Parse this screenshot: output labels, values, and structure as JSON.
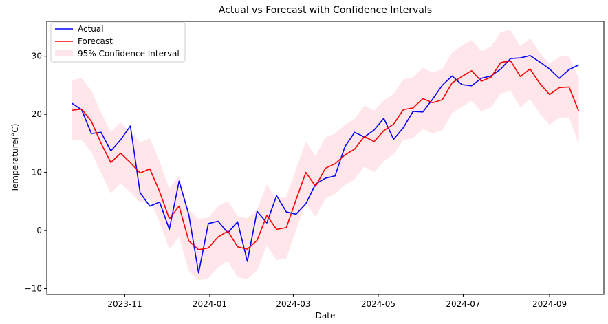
{
  "chart_data": {
    "type": "line",
    "title": "Actual vs Forecast with Confidence Intervals",
    "xlabel": "Date",
    "ylabel": "Temperature(°C)",
    "x_start": "2023-09-24",
    "x_step_days": 7,
    "xlim": [
      "2023-09-06",
      "2024-10-10"
    ],
    "ylim": [
      -11,
      36
    ],
    "x_ticks": [
      {
        "date": "2023-11-01",
        "label": "2023-11"
      },
      {
        "date": "2024-01-01",
        "label": "2024-01"
      },
      {
        "date": "2024-03-01",
        "label": "2024-03"
      },
      {
        "date": "2024-05-01",
        "label": "2024-05"
      },
      {
        "date": "2024-07-01",
        "label": "2024-07"
      },
      {
        "date": "2024-09-01",
        "label": "2024-09"
      }
    ],
    "y_ticks": [
      -10,
      0,
      10,
      20,
      30
    ],
    "legend_position": "top-left",
    "series": [
      {
        "name": "Actual",
        "color": "#0000ff",
        "values": [
          21.9,
          20.8,
          16.7,
          16.9,
          13.7,
          15.6,
          18.0,
          6.5,
          4.2,
          4.9,
          0.2,
          8.5,
          2.7,
          -7.3,
          1.2,
          1.6,
          -0.4,
          1.5,
          -5.3,
          3.3,
          1.3,
          6.0,
          3.2,
          2.8,
          4.6,
          8.0,
          9.0,
          9.4,
          14.4,
          16.9,
          16.1,
          17.3,
          19.3,
          15.7,
          17.7,
          20.5,
          20.4,
          22.6,
          25.0,
          26.6,
          25.1,
          24.9,
          26.2,
          26.6,
          27.8,
          29.6,
          29.7,
          30.1,
          29.0,
          27.8,
          26.2,
          27.7,
          28.5
        ]
      },
      {
        "name": "Forecast",
        "color": "#ff0000",
        "values": [
          20.7,
          20.9,
          18.8,
          15.0,
          11.7,
          13.3,
          11.7,
          9.9,
          10.6,
          6.7,
          2.0,
          4.2,
          -1.8,
          -3.3,
          -3.0,
          -1.1,
          -0.1,
          -2.8,
          -3.2,
          -1.7,
          2.6,
          0.2,
          0.5,
          5.3,
          10.0,
          7.6,
          10.7,
          11.5,
          13.0,
          14.0,
          16.2,
          15.3,
          17.2,
          18.3,
          20.8,
          21.1,
          22.7,
          22.0,
          22.5,
          25.4,
          26.5,
          27.5,
          25.7,
          26.4,
          28.9,
          29.2,
          26.5,
          27.8,
          25.3,
          23.4,
          24.6,
          24.7,
          20.5
        ]
      }
    ],
    "confidence_interval": {
      "name": "95% Confidence Interval",
      "color": "#ffc0cb",
      "lower": [
        15.5,
        15.6,
        13.5,
        9.9,
        6.4,
        8.1,
        6.6,
        4.8,
        5.4,
        1.4,
        -3.2,
        -1.1,
        -7.0,
        -8.6,
        -8.2,
        -6.3,
        -5.3,
        -8.0,
        -8.4,
        -6.9,
        -2.6,
        -5.1,
        -4.8,
        0.1,
        4.8,
        2.3,
        5.5,
        6.3,
        7.8,
        8.8,
        11.0,
        10.0,
        11.9,
        13.1,
        15.6,
        15.9,
        17.5,
        16.7,
        17.2,
        20.2,
        21.3,
        22.3,
        20.5,
        21.2,
        23.6,
        24.0,
        21.2,
        22.6,
        20.1,
        18.2,
        19.4,
        19.5,
        14.8
      ],
      "upper": [
        25.9,
        26.2,
        24.1,
        20.3,
        17.0,
        18.6,
        17.0,
        15.2,
        15.9,
        11.9,
        7.2,
        9.4,
        3.5,
        2.0,
        2.2,
        4.2,
        5.1,
        2.5,
        2.1,
        3.6,
        7.9,
        5.5,
        5.8,
        10.6,
        15.3,
        12.8,
        16.0,
        16.7,
        18.2,
        19.2,
        21.5,
        20.6,
        22.4,
        23.5,
        26.0,
        26.4,
        28.0,
        27.2,
        27.8,
        30.6,
        31.8,
        32.8,
        30.9,
        31.6,
        34.2,
        34.5,
        31.7,
        33.1,
        30.6,
        28.7,
        29.9,
        30.0,
        26.2
      ]
    }
  }
}
